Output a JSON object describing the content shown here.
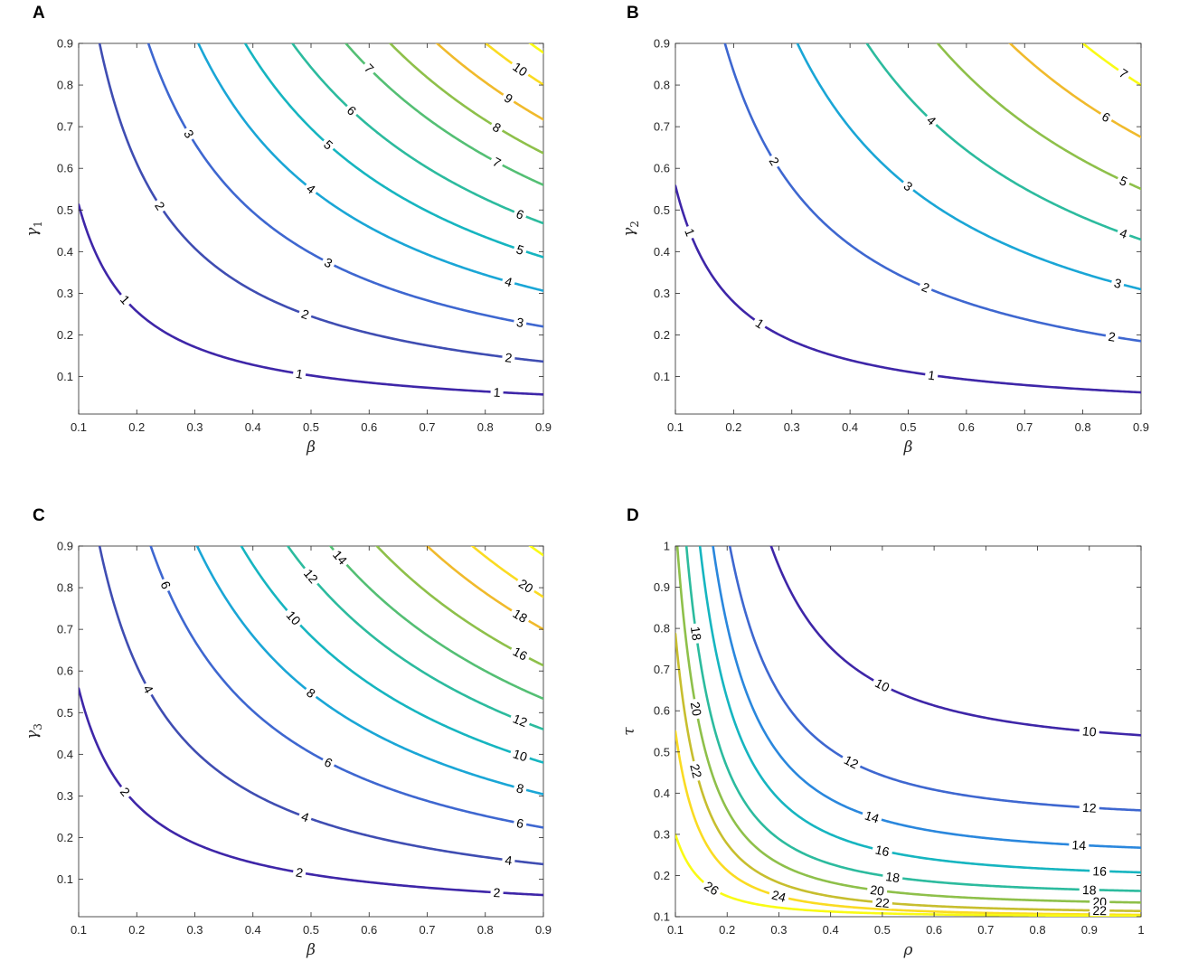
{
  "colors": {
    "parula": [
      "#3e26a8",
      "#3f4db2",
      "#3e67d0",
      "#2a87dd",
      "#1aa6d6",
      "#16b5c0",
      "#2cbb9e",
      "#54bf74",
      "#8ec04a",
      "#c7be2e",
      "#f0ba2c",
      "#fadb22",
      "#f9fb15"
    ]
  },
  "chart_data": [
    {
      "panel": "A",
      "type": "contour",
      "xlabel": "β",
      "ylabel": "γ",
      "ylabel_sub": "1",
      "xlim": [
        0.1,
        0.9
      ],
      "ylim": [
        0.01,
        0.9
      ],
      "xticks": [
        0.1,
        0.2,
        0.3,
        0.4,
        0.5,
        0.6,
        0.7,
        0.8,
        0.9
      ],
      "yticks": [
        0.1,
        0.2,
        0.3,
        0.4,
        0.5,
        0.6,
        0.7,
        0.8,
        0.9
      ],
      "xtick_labels": [
        "0.1",
        "0.2",
        "0.3",
        "0.4",
        "0.5",
        "0.6",
        "0.7",
        "0.8",
        "0.9"
      ],
      "ytick_labels": [
        "0.1",
        "0.2",
        "0.3",
        "0.4",
        "0.5",
        "0.6",
        "0.7",
        "0.8",
        "0.9"
      ],
      "levels": [
        {
          "value": 1,
          "label": "1",
          "k": 0.0513,
          "labels_at_x": [
            0.18,
            0.48,
            0.82
          ]
        },
        {
          "value": 2,
          "label": "2",
          "k": 0.1224,
          "labels_at_x": [
            0.24,
            0.49,
            0.84
          ]
        },
        {
          "value": 3,
          "label": "3",
          "k": 0.198,
          "labels_at_x": [
            0.29,
            0.53,
            0.86
          ]
        },
        {
          "value": 4,
          "label": "4",
          "k": 0.2754,
          "labels_at_x": [
            0.5,
            0.84
          ]
        },
        {
          "value": 5,
          "label": "5",
          "k": 0.348,
          "labels_at_x": [
            0.53,
            0.86
          ]
        },
        {
          "value": 6,
          "label": "6",
          "k": 0.4212,
          "labels_at_x": [
            0.57,
            0.86
          ]
        },
        {
          "value": 7,
          "label": "7",
          "k": 0.504,
          "labels_at_x": [
            0.6,
            0.82
          ]
        },
        {
          "value": 8,
          "label": "8",
          "k": 0.5727,
          "labels_at_x": [
            0.82
          ]
        },
        {
          "value": 9,
          "label": "9",
          "k": 0.6454,
          "labels_at_x": [
            0.84
          ]
        },
        {
          "value": 10,
          "label": "10",
          "k": 0.7208,
          "labels_at_x": [
            0.86
          ]
        },
        {
          "value": 11,
          "label": "",
          "k": 0.79,
          "labels_at_x": []
        }
      ]
    },
    {
      "panel": "B",
      "type": "contour",
      "xlabel": "β",
      "ylabel": "γ",
      "ylabel_sub": "2",
      "xlim": [
        0.1,
        0.9
      ],
      "ylim": [
        0.01,
        0.9
      ],
      "xticks": [
        0.1,
        0.2,
        0.3,
        0.4,
        0.5,
        0.6,
        0.7,
        0.8,
        0.9
      ],
      "yticks": [
        0.1,
        0.2,
        0.3,
        0.4,
        0.5,
        0.6,
        0.7,
        0.8,
        0.9
      ],
      "xtick_labels": [
        "0.1",
        "0.2",
        "0.3",
        "0.4",
        "0.5",
        "0.6",
        "0.7",
        "0.8",
        "0.9"
      ],
      "ytick_labels": [
        "0.1",
        "0.2",
        "0.3",
        "0.4",
        "0.5",
        "0.6",
        "0.7",
        "0.8",
        "0.9"
      ],
      "levels": [
        {
          "value": 1,
          "label": "1",
          "k": 0.0558,
          "labels_at_x": [
            0.125,
            0.245,
            0.54
          ]
        },
        {
          "value": 2,
          "label": "2",
          "k": 0.1666,
          "labels_at_x": [
            0.27,
            0.53,
            0.85
          ]
        },
        {
          "value": 3,
          "label": "3",
          "k": 0.2786,
          "labels_at_x": [
            0.5,
            0.86
          ]
        },
        {
          "value": 4,
          "label": "4",
          "k": 0.3861,
          "labels_at_x": [
            0.54,
            0.87
          ]
        },
        {
          "value": 5,
          "label": "5",
          "k": 0.4956,
          "labels_at_x": [
            0.55,
            0.87
          ]
        },
        {
          "value": 6,
          "label": "6",
          "k": 0.6075,
          "labels_at_x": [
            0.84
          ]
        },
        {
          "value": 7,
          "label": "7",
          "k": 0.72,
          "labels_at_x": [
            0.87
          ]
        }
      ]
    },
    {
      "panel": "C",
      "type": "contour",
      "xlabel": "β",
      "ylabel": "γ",
      "ylabel_sub": "3",
      "xlim": [
        0.1,
        0.9
      ],
      "ylim": [
        0.01,
        0.9
      ],
      "xticks": [
        0.1,
        0.2,
        0.3,
        0.4,
        0.5,
        0.6,
        0.7,
        0.8,
        0.9
      ],
      "yticks": [
        0.1,
        0.2,
        0.3,
        0.4,
        0.5,
        0.6,
        0.7,
        0.8,
        0.9
      ],
      "xtick_labels": [
        "0.1",
        "0.2",
        "0.3",
        "0.4",
        "0.5",
        "0.6",
        "0.7",
        "0.8",
        "0.9"
      ],
      "ytick_labels": [
        "0.1",
        "0.2",
        "0.3",
        "0.4",
        "0.5",
        "0.6",
        "0.7",
        "0.8",
        "0.9"
      ],
      "levels": [
        {
          "value": 2,
          "label": "2",
          "k": 0.0558,
          "labels_at_x": [
            0.18,
            0.48,
            0.82
          ]
        },
        {
          "value": 4,
          "label": "4",
          "k": 0.1224,
          "labels_at_x": [
            0.22,
            0.49,
            0.84
          ]
        },
        {
          "value": 6,
          "label": "6",
          "k": 0.2016,
          "labels_at_x": [
            0.25,
            0.53,
            0.86
          ]
        },
        {
          "value": 8,
          "label": "8",
          "k": 0.2736,
          "labels_at_x": [
            0.5,
            0.86
          ]
        },
        {
          "value": 10,
          "label": "10",
          "k": 0.342,
          "labels_at_x": [
            0.47,
            0.86
          ]
        },
        {
          "value": 12,
          "label": "12",
          "k": 0.414,
          "labels_at_x": [
            0.5,
            0.86
          ]
        },
        {
          "value": 14,
          "label": "14",
          "k": 0.48,
          "labels_at_x": [
            0.55
          ]
        },
        {
          "value": 16,
          "label": "16",
          "k": 0.552,
          "labels_at_x": [
            0.86
          ]
        },
        {
          "value": 18,
          "label": "18",
          "k": 0.63,
          "labels_at_x": [
            0.86
          ]
        },
        {
          "value": 20,
          "label": "20",
          "k": 0.7,
          "labels_at_x": [
            0.87
          ]
        },
        {
          "value": 22,
          "label": "",
          "k": 0.79,
          "labels_at_x": []
        }
      ]
    },
    {
      "panel": "D",
      "type": "contour",
      "xlabel": "ρ",
      "ylabel": "τ",
      "ylabel_sub": "",
      "xlim": [
        0.1,
        1.0
      ],
      "ylim": [
        0.1,
        1.0
      ],
      "xticks": [
        0.1,
        0.2,
        0.3,
        0.4,
        0.5,
        0.6,
        0.7,
        0.8,
        0.9,
        1.0
      ],
      "yticks": [
        0.1,
        0.2,
        0.3,
        0.4,
        0.5,
        0.6,
        0.7,
        0.8,
        0.9,
        1.0
      ],
      "xtick_labels": [
        "0.1",
        "0.2",
        "0.3",
        "0.4",
        "0.5",
        "0.6",
        "0.7",
        "0.8",
        "0.9",
        "1"
      ],
      "ytick_labels": [
        "0.1",
        "0.2",
        "0.3",
        "0.4",
        "0.5",
        "0.6",
        "0.7",
        "0.8",
        "0.9",
        "1"
      ],
      "levels": [
        {
          "value": 10,
          "label": "10",
          "a": 0.5,
          "c": 0.0406,
          "labels_at_x": [
            0.18,
            0.5,
            0.9
          ]
        },
        {
          "value": 12,
          "label": "12",
          "a": 0.33,
          "c": 0.0282,
          "labels_at_x": [
            0.115,
            0.44,
            0.9
          ]
        },
        {
          "value": 14,
          "label": "14",
          "a": 0.245,
          "c": 0.0225,
          "labels_at_x": [
            0.12,
            0.48,
            0.88
          ]
        },
        {
          "value": 16,
          "label": "16",
          "a": 0.19,
          "c": 0.0176,
          "labels_at_x": [
            0.14,
            0.5,
            0.92
          ]
        },
        {
          "value": 18,
          "label": "18",
          "a": 0.15,
          "c": 0.0125,
          "labels_at_x": [
            0.14,
            0.52,
            0.9
          ]
        },
        {
          "value": 20,
          "label": "20",
          "a": 0.125,
          "c": 0.0094,
          "labels_at_x": [
            0.14,
            0.49,
            0.92
          ]
        },
        {
          "value": 22,
          "label": "22",
          "a": 0.107,
          "c": 0.0068,
          "labels_at_x": [
            0.14,
            0.5,
            0.92
          ]
        },
        {
          "value": 24,
          "label": "24",
          "a": 0.1,
          "c": 0.0045,
          "labels_at_x": [
            0.3
          ]
        },
        {
          "value": 26,
          "label": "26",
          "a": 0.1,
          "c": 0.002,
          "labels_at_x": [
            0.17
          ]
        }
      ]
    }
  ]
}
